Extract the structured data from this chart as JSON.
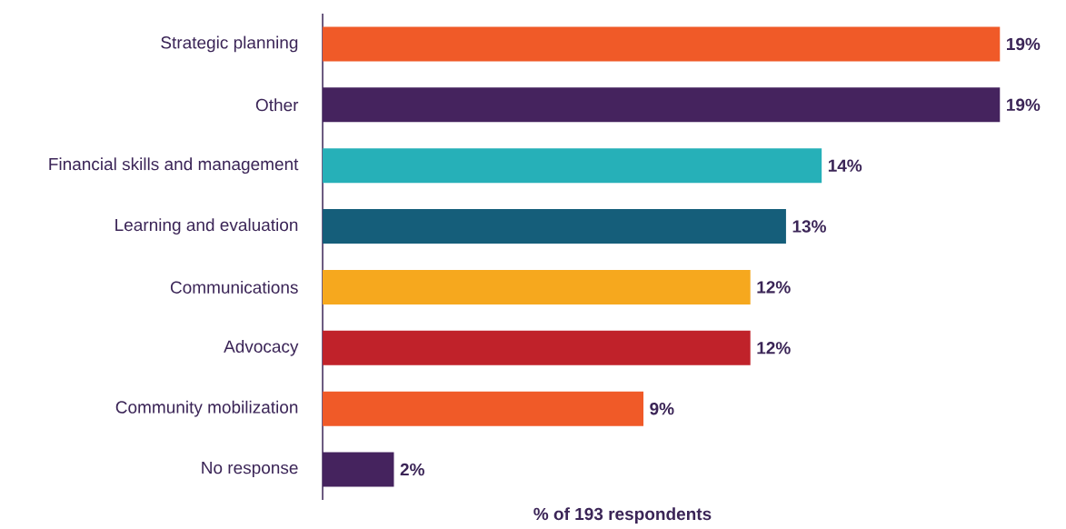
{
  "chart_data": {
    "type": "bar",
    "orientation": "horizontal",
    "xlabel": "% of 193 respondents",
    "categories": [
      "Strategic planning",
      "Other",
      "Financial skills and management",
      "Learning and evaluation",
      "Communications",
      "Advocacy",
      "Community mobilization",
      "No response"
    ],
    "values": [
      19,
      19,
      14,
      13,
      12,
      12,
      9,
      2
    ],
    "value_labels": [
      "19%",
      "19%",
      "14%",
      "13%",
      "12%",
      "12%",
      "9%",
      "2%"
    ],
    "colors": [
      "#f05a28",
      "#45235e",
      "#26b0b8",
      "#155e7a",
      "#f6a81e",
      "#c0222a",
      "#f05a28",
      "#45235e"
    ]
  }
}
